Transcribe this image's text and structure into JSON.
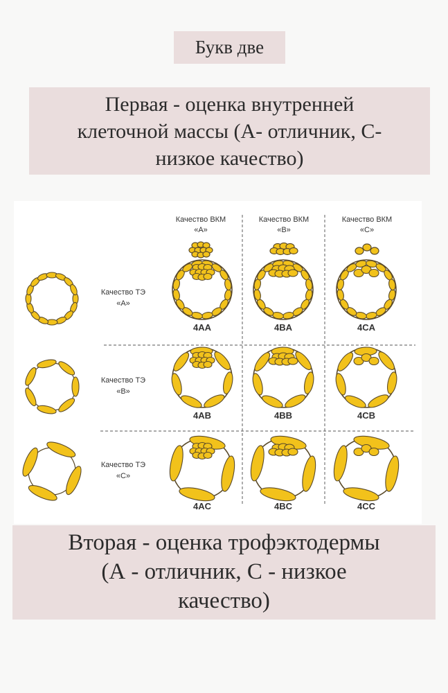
{
  "title": "Букв две",
  "first_note": {
    "lines": [
      "Первая - оценка внутренней",
      "клеточной массы (А- отличник, С-",
      "низкое качество)"
    ]
  },
  "second_note": {
    "lines": [
      "Вторая - оценка трофэктодермы",
      "(А - отличник, С - низкое",
      "качество)"
    ]
  },
  "diagram": {
    "icm_headers": [
      {
        "line1": "Качество ВКМ",
        "line2": "«А»"
      },
      {
        "line1": "Качество ВКМ",
        "line2": "«В»"
      },
      {
        "line1": "Качество ВКМ",
        "line2": "«С»"
      }
    ],
    "te_labels": [
      {
        "line1": "Качество ТЭ",
        "line2": "«А»"
      },
      {
        "line1": "Качество ТЭ",
        "line2": "«В»"
      },
      {
        "line1": "Качество ТЭ",
        "line2": "«С»"
      }
    ],
    "grades": [
      [
        "4AA",
        "4BA",
        "4CA"
      ],
      [
        "4AB",
        "4BB",
        "4CB"
      ],
      [
        "4AC",
        "4BC",
        "4CC"
      ]
    ],
    "colors": {
      "cell_fill": "#f2c21b",
      "cell_stroke": "#5a4a2a",
      "divider": "#777777",
      "text": "#333333"
    }
  }
}
